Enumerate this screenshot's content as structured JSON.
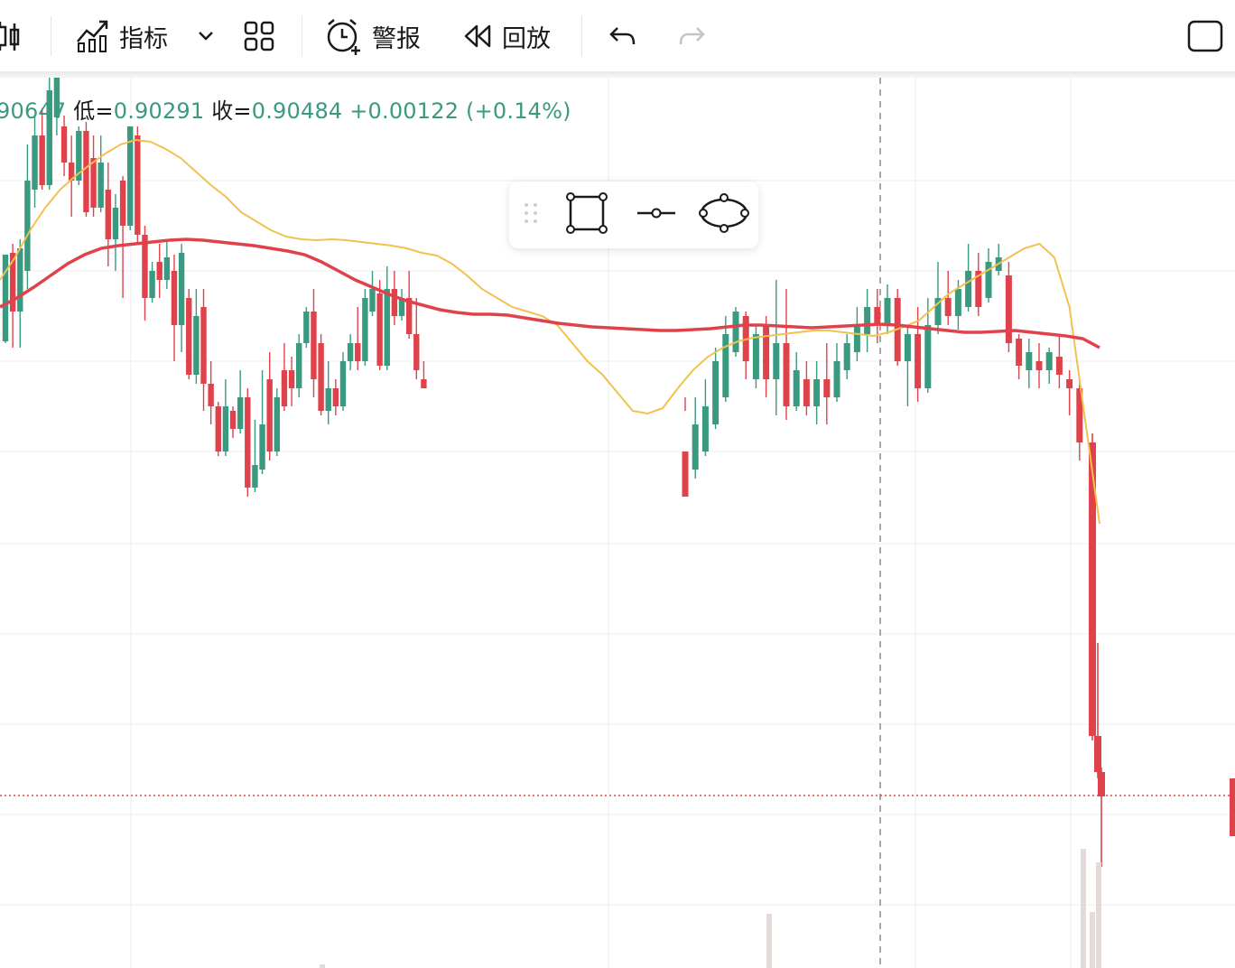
{
  "toolbar": {
    "indicators_label": "指标",
    "alerts_label": "警报",
    "replay_label": "回放"
  },
  "legend": {
    "open_value": "90647",
    "low_label": "低=",
    "low_value": "0.90291",
    "close_label": "收=",
    "close_value": "0.90484",
    "change": "+0.00122 (+0.14%)"
  },
  "colors": {
    "up": "#3a9a80",
    "down": "#e0424b",
    "ma_fast": "#f2c14e",
    "ma_slow": "#e0424b",
    "grid": "#eeeeee",
    "last_price_line": "#e0424b"
  },
  "drawing_tools": [
    "rectangle-tool",
    "line-tool",
    "ellipse-tool"
  ],
  "chart_data": {
    "type": "candlestick",
    "ma_fast": [
      310,
      285,
      255,
      230,
      210,
      195,
      182,
      170,
      160,
      155,
      157,
      165,
      175,
      190,
      205,
      218,
      235,
      245,
      255,
      262,
      265,
      266,
      265,
      266,
      268,
      270,
      272,
      275,
      280,
      283,
      292,
      305,
      320,
      330,
      340,
      345,
      350,
      360,
      380,
      400,
      415,
      435,
      455,
      458,
      452,
      430,
      410,
      395,
      385,
      378,
      374,
      372,
      370,
      368,
      366,
      366,
      368,
      370,
      372,
      368,
      362,
      355,
      340,
      325,
      315,
      305,
      295,
      285,
      275,
      270,
      285,
      340,
      460,
      580
    ],
    "ma_slow": [
      340,
      330,
      318,
      305,
      292,
      282,
      275,
      272,
      270,
      268,
      266,
      265,
      266,
      268,
      270,
      272,
      275,
      278,
      282,
      290,
      300,
      310,
      318,
      326,
      333,
      338,
      343,
      346,
      348,
      348,
      349,
      352,
      355,
      358,
      360,
      362,
      363,
      364,
      365,
      366,
      366,
      365,
      364,
      362,
      360,
      360,
      361,
      362,
      363,
      362,
      361,
      360,
      359,
      360,
      362,
      364,
      366,
      368,
      368,
      367,
      366,
      368,
      370,
      372,
      375,
      385
    ],
    "candles": [
      {
        "c": "u",
        "o": 378,
        "c2": 282,
        "h": 285,
        "l": 380
      },
      {
        "c": "d",
        "o": 280,
        "c2": 345,
        "h": 270,
        "l": 385
      },
      {
        "c": "u",
        "o": 345,
        "c2": 275,
        "h": 265,
        "l": 385
      },
      {
        "c": "u",
        "o": 300,
        "c2": 200,
        "h": 160,
        "l": 320
      },
      {
        "c": "u",
        "o": 210,
        "c2": 150,
        "h": 130,
        "l": 230
      },
      {
        "c": "d",
        "o": 150,
        "c2": 205,
        "h": 120,
        "l": 210
      },
      {
        "c": "u",
        "o": 205,
        "c2": 100,
        "h": 86,
        "l": 210
      },
      {
        "c": "u",
        "o": 130,
        "c2": 86,
        "h": 86,
        "l": 150
      },
      {
        "c": "d",
        "o": 140,
        "c2": 180,
        "h": 128,
        "l": 195
      },
      {
        "c": "d",
        "o": 180,
        "c2": 200,
        "h": 150,
        "l": 240
      },
      {
        "c": "u",
        "o": 200,
        "c2": 145,
        "h": 140,
        "l": 205
      },
      {
        "c": "d",
        "o": 145,
        "c2": 235,
        "h": 135,
        "l": 240
      },
      {
        "c": "d",
        "o": 175,
        "c2": 230,
        "h": 150,
        "l": 240
      },
      {
        "c": "u",
        "o": 230,
        "c2": 180,
        "h": 150,
        "l": 235
      },
      {
        "c": "d",
        "o": 210,
        "c2": 265,
        "h": 180,
        "l": 295
      },
      {
        "c": "u",
        "o": 265,
        "c2": 230,
        "h": 215,
        "l": 300
      },
      {
        "c": "d",
        "o": 200,
        "c2": 250,
        "h": 195,
        "l": 330
      },
      {
        "c": "u",
        "o": 250,
        "c2": 140,
        "h": 140,
        "l": 255
      },
      {
        "c": "d",
        "o": 150,
        "c2": 260,
        "h": 140,
        "l": 270
      },
      {
        "c": "d",
        "o": 260,
        "c2": 330,
        "h": 250,
        "l": 355
      },
      {
        "c": "u",
        "o": 330,
        "c2": 300,
        "h": 290,
        "l": 335
      },
      {
        "c": "d",
        "o": 290,
        "c2": 310,
        "h": 270,
        "l": 330
      },
      {
        "c": "u",
        "o": 310,
        "c2": 285,
        "h": 265,
        "l": 320
      },
      {
        "c": "d",
        "o": 300,
        "c2": 360,
        "h": 282,
        "l": 400
      },
      {
        "c": "u",
        "o": 360,
        "c2": 280,
        "h": 270,
        "l": 390
      },
      {
        "c": "d",
        "o": 330,
        "c2": 415,
        "h": 320,
        "l": 420
      },
      {
        "c": "u",
        "o": 415,
        "c2": 350,
        "h": 320,
        "l": 425
      },
      {
        "c": "d",
        "o": 340,
        "c2": 425,
        "h": 320,
        "l": 455
      },
      {
        "c": "d",
        "o": 425,
        "c2": 450,
        "h": 400,
        "l": 470
      },
      {
        "c": "d",
        "o": 450,
        "c2": 500,
        "h": 445,
        "l": 505
      },
      {
        "c": "u",
        "o": 500,
        "c2": 450,
        "h": 420,
        "l": 505
      },
      {
        "c": "d",
        "o": 455,
        "c2": 475,
        "h": 450,
        "l": 485
      },
      {
        "c": "u",
        "o": 475,
        "c2": 440,
        "h": 410,
        "l": 480
      },
      {
        "c": "d",
        "o": 440,
        "c2": 540,
        "h": 430,
        "l": 550
      },
      {
        "c": "u",
        "o": 540,
        "c2": 515,
        "h": 465,
        "l": 545
      },
      {
        "c": "u",
        "o": 520,
        "c2": 470,
        "h": 410,
        "l": 525
      },
      {
        "c": "d",
        "o": 420,
        "c2": 500,
        "h": 390,
        "l": 510
      },
      {
        "c": "u",
        "o": 500,
        "c2": 440,
        "h": 430,
        "l": 505
      },
      {
        "c": "d",
        "o": 410,
        "c2": 450,
        "h": 380,
        "l": 455
      },
      {
        "c": "d",
        "o": 410,
        "c2": 430,
        "h": 395,
        "l": 450
      },
      {
        "c": "u",
        "o": 430,
        "c2": 380,
        "h": 370,
        "l": 440
      },
      {
        "c": "u",
        "o": 380,
        "c2": 345,
        "h": 340,
        "l": 385
      },
      {
        "c": "d",
        "o": 345,
        "c2": 420,
        "h": 320,
        "l": 440
      },
      {
        "c": "d",
        "o": 380,
        "c2": 455,
        "h": 370,
        "l": 460
      },
      {
        "c": "u",
        "o": 455,
        "c2": 430,
        "h": 400,
        "l": 470
      },
      {
        "c": "d",
        "o": 430,
        "c2": 450,
        "h": 420,
        "l": 460
      },
      {
        "c": "u",
        "o": 450,
        "c2": 400,
        "h": 390,
        "l": 455
      },
      {
        "c": "u",
        "o": 400,
        "c2": 380,
        "h": 370,
        "l": 410
      },
      {
        "c": "d",
        "o": 380,
        "c2": 400,
        "h": 340,
        "l": 410
      },
      {
        "c": "u",
        "o": 400,
        "c2": 330,
        "h": 320,
        "l": 405
      },
      {
        "c": "u",
        "o": 345,
        "c2": 320,
        "h": 300,
        "l": 350
      },
      {
        "c": "d",
        "o": 325,
        "c2": 405,
        "h": 310,
        "l": 410
      },
      {
        "c": "u",
        "o": 405,
        "c2": 320,
        "h": 295,
        "l": 410
      },
      {
        "c": "d",
        "o": 320,
        "c2": 350,
        "h": 300,
        "l": 360
      },
      {
        "c": "u",
        "o": 350,
        "c2": 330,
        "h": 320,
        "l": 355
      },
      {
        "c": "d",
        "o": 330,
        "c2": 370,
        "h": 300,
        "l": 375
      },
      {
        "c": "d",
        "o": 370,
        "c2": 410,
        "h": 330,
        "l": 420
      },
      {
        "c": "d",
        "o": 420,
        "c2": 430,
        "h": 400,
        "l": 430
      }
    ],
    "last_price": "0.90484"
  }
}
